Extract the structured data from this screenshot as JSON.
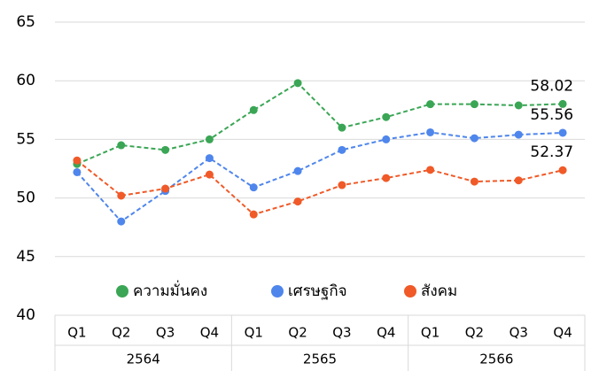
{
  "chart_data": {
    "type": "line",
    "categories": [
      "Q1",
      "Q2",
      "Q3",
      "Q4",
      "Q1",
      "Q2",
      "Q3",
      "Q4",
      "Q1",
      "Q2",
      "Q3",
      "Q4"
    ],
    "category_groups": [
      "2564",
      "2565",
      "2566"
    ],
    "series": [
      {
        "name": "ความมั่นคง",
        "color": "#3aa655",
        "label_color": "#3aa655",
        "values": [
          52.9,
          54.5,
          54.1,
          55.0,
          57.5,
          59.8,
          56.0,
          56.9,
          58.0,
          58.0,
          57.9,
          58.02
        ]
      },
      {
        "name": "เศรษฐกิจ",
        "color": "#4f86ec",
        "label_color": "#4bacc6",
        "values": [
          52.2,
          48.0,
          50.6,
          53.4,
          50.9,
          52.3,
          54.1,
          55.0,
          55.6,
          55.1,
          55.4,
          55.56
        ]
      },
      {
        "name": "สังคม",
        "color": "#f05a28",
        "label_color": "#ff0000",
        "values": [
          53.2,
          50.2,
          50.8,
          52.0,
          48.6,
          49.7,
          51.1,
          51.7,
          52.4,
          51.4,
          51.5,
          52.37
        ]
      }
    ],
    "ylim": [
      40,
      65
    ],
    "yticks": [
      40,
      45,
      50,
      55,
      60,
      65
    ],
    "grid": true,
    "dashed": true
  }
}
